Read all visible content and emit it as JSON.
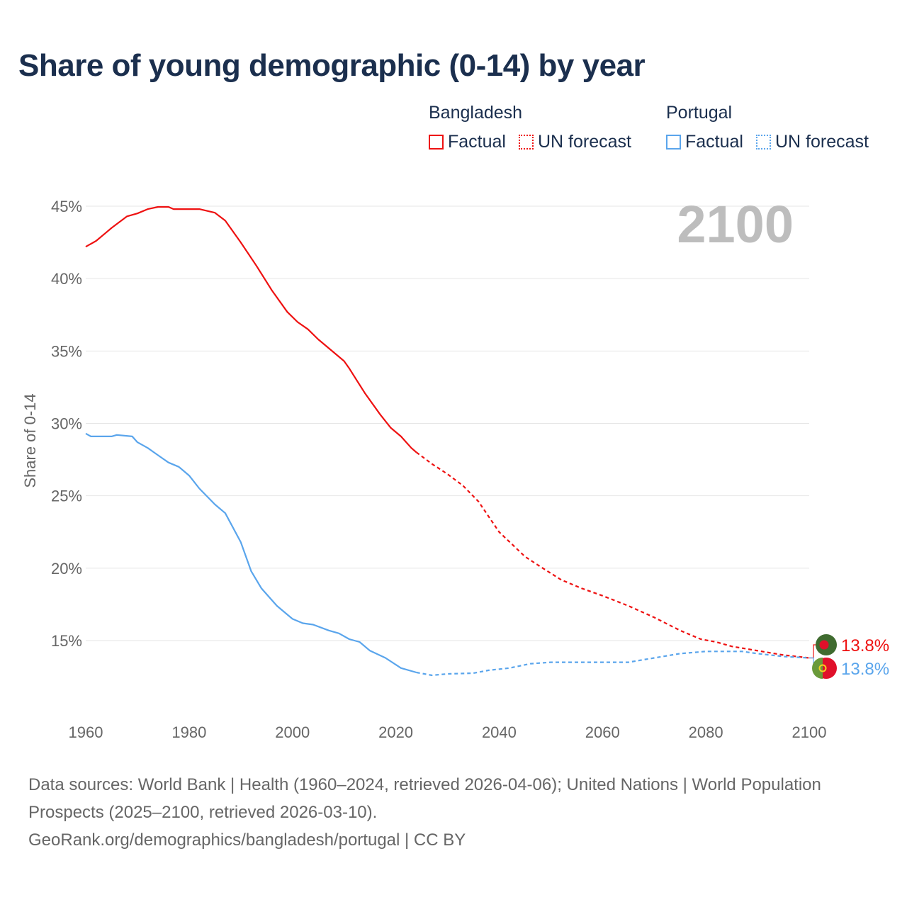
{
  "chart_data": {
    "type": "line",
    "title": "Share of young demographic (0-14) by year",
    "ylabel": "Share of 0-14",
    "xlabel": "",
    "xlim": [
      1960,
      2100
    ],
    "ylim": [
      11,
      46
    ],
    "x_ticks": [
      "1960",
      "1980",
      "2000",
      "2020",
      "2040",
      "2060",
      "2080",
      "2100"
    ],
    "x_tick_values": [
      1960,
      1980,
      2000,
      2020,
      2040,
      2060,
      2080,
      2100
    ],
    "y_ticks": [
      "15%",
      "20%",
      "25%",
      "30%",
      "35%",
      "40%",
      "45%"
    ],
    "y_tick_values": [
      15,
      20,
      25,
      30,
      35,
      40,
      45
    ],
    "grid": true,
    "year_overlay": "2100",
    "legend": {
      "placement": "top-right",
      "groups": [
        {
          "name": "Bangladesh",
          "factual": "Factual",
          "forecast": "UN forecast",
          "color": "#ee1111"
        },
        {
          "name": "Portugal",
          "factual": "Factual",
          "forecast": "UN forecast",
          "color": "#5aa5ec"
        }
      ]
    },
    "series": [
      {
        "name": "Bangladesh",
        "color": "#ee1111",
        "end_label": "13.8%",
        "factual": {
          "x": [
            1960,
            1962,
            1964,
            1965,
            1968,
            1970,
            1972,
            1974,
            1976,
            1977,
            1982,
            1985,
            1987,
            1990,
            1993,
            1996,
            1999,
            2001,
            2003,
            2005,
            2008,
            2010,
            2011,
            2014,
            2017,
            2019,
            2021,
            2023,
            2024
          ],
          "y": [
            42.2,
            42.6,
            43.2,
            43.5,
            44.3,
            44.5,
            44.8,
            44.95,
            44.95,
            44.8,
            44.8,
            44.55,
            44.0,
            42.5,
            40.9,
            39.2,
            37.7,
            37.0,
            36.5,
            35.8,
            34.9,
            34.3,
            33.8,
            32.1,
            30.6,
            29.7,
            29.1,
            28.3,
            28.0
          ]
        },
        "forecast": {
          "x": [
            2024,
            2027,
            2030,
            2033,
            2036,
            2040,
            2045,
            2048,
            2052,
            2056,
            2060,
            2065,
            2070,
            2075,
            2079,
            2082,
            2085,
            2090,
            2095,
            2100
          ],
          "y": [
            28.0,
            27.2,
            26.5,
            25.7,
            24.6,
            22.5,
            20.8,
            20.1,
            19.2,
            18.6,
            18.1,
            17.4,
            16.6,
            15.7,
            15.1,
            14.9,
            14.6,
            14.3,
            14.0,
            13.8
          ]
        }
      },
      {
        "name": "Portugal",
        "color": "#5aa5ec",
        "end_label": "13.8%",
        "factual": {
          "x": [
            1960,
            1961,
            1965,
            1966,
            1969,
            1970,
            1972,
            1974,
            1976,
            1978,
            1980,
            1982,
            1985,
            1987,
            1990,
            1992,
            1994,
            1997,
            2000,
            2002,
            2004,
            2007,
            2009,
            2011,
            2013,
            2015,
            2018,
            2021,
            2024
          ],
          "y": [
            29.3,
            29.1,
            29.1,
            29.2,
            29.1,
            28.7,
            28.3,
            27.8,
            27.3,
            27.0,
            26.4,
            25.5,
            24.4,
            23.8,
            21.8,
            19.8,
            18.6,
            17.4,
            16.5,
            16.2,
            16.1,
            15.7,
            15.5,
            15.1,
            14.9,
            14.3,
            13.8,
            13.1,
            12.8
          ]
        },
        "forecast": {
          "x": [
            2024,
            2027,
            2030,
            2035,
            2038,
            2042,
            2046,
            2050,
            2060,
            2065,
            2070,
            2075,
            2080,
            2087,
            2090,
            2095,
            2100
          ],
          "y": [
            12.8,
            12.6,
            12.7,
            12.75,
            12.95,
            13.1,
            13.4,
            13.5,
            13.5,
            13.5,
            13.8,
            14.1,
            14.25,
            14.25,
            14.1,
            13.9,
            13.8
          ]
        }
      }
    ]
  },
  "footer": {
    "sources": "Data sources: World Bank | Health (1960–2024, retrieved 2026-04-06); United Nations | World Population Prospects (2025–2100, retrieved 2026-03-10).",
    "link": "GeoRank.org/demographics/bangladesh/portugal | CC BY"
  }
}
